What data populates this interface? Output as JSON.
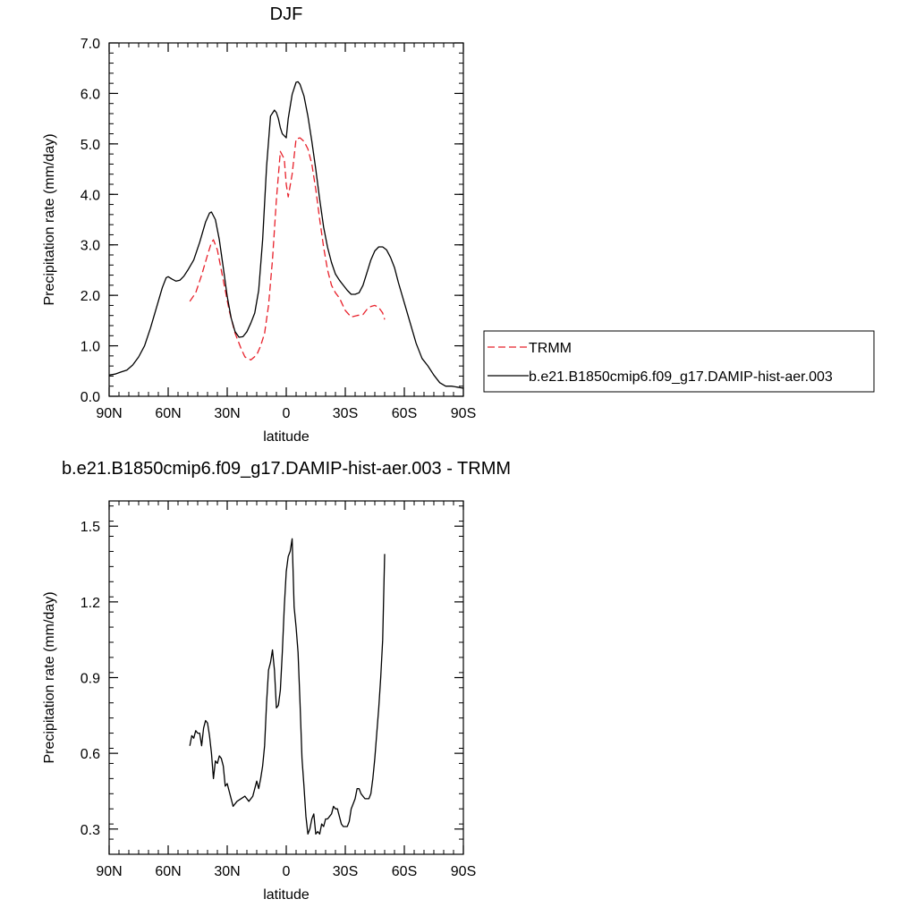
{
  "chart_data": [
    {
      "type": "line",
      "title": "DJF",
      "xlabel": "latitude",
      "ylabel": "Precipitation rate (mm/day)",
      "xlim": [
        90,
        -90
      ],
      "ylim": [
        0,
        7
      ],
      "x_ticks": [
        90,
        60,
        30,
        0,
        -30,
        -60,
        -90
      ],
      "x_tick_labels": [
        "90N",
        "60N",
        "30N",
        "0",
        "30S",
        "60S",
        "90S"
      ],
      "y_ticks": [
        0,
        1,
        2,
        3,
        4,
        5,
        6,
        7
      ],
      "y_tick_labels": [
        "0.0",
        "1.0",
        "2.0",
        "3.0",
        "4.0",
        "5.0",
        "6.0",
        "7.0"
      ],
      "legend": {
        "placement": "right",
        "entries": [
          "TRMM",
          "b.e21.B1850cmip6.f09_g17.DAMIP-hist-aer.003"
        ]
      },
      "series": [
        {
          "name": "TRMM",
          "color": "#e8202a",
          "dash": "dashed",
          "x": [
            49,
            46,
            43,
            40,
            38,
            37,
            35,
            32,
            29,
            26,
            23,
            21,
            18,
            15,
            13,
            11,
            9,
            7,
            5,
            3,
            1,
            0,
            -1,
            -3,
            -5,
            -7,
            -9,
            -11,
            -13,
            -15,
            -17,
            -19,
            -21,
            -23,
            -25,
            -27,
            -30,
            -33,
            -36,
            -39,
            -41,
            -43,
            -45,
            -47,
            -49,
            -50
          ],
          "y": [
            1.88,
            2.05,
            2.4,
            2.8,
            3.05,
            3.1,
            2.9,
            2.3,
            1.7,
            1.25,
            0.95,
            0.78,
            0.72,
            0.82,
            1.0,
            1.25,
            1.8,
            2.7,
            3.9,
            4.85,
            4.7,
            4.2,
            3.95,
            4.4,
            5.1,
            5.12,
            5.05,
            4.9,
            4.6,
            4.1,
            3.5,
            2.95,
            2.5,
            2.2,
            2.05,
            1.95,
            1.7,
            1.57,
            1.6,
            1.62,
            1.72,
            1.78,
            1.8,
            1.76,
            1.65,
            1.52
          ]
        },
        {
          "name": "b.e21.B1850cmip6.f09_g17.DAMIP-hist-aer.003",
          "color": "#000000",
          "dash": "solid",
          "x": [
            90,
            87,
            84,
            81,
            78,
            75,
            72,
            69,
            66,
            63,
            61,
            60,
            58,
            56,
            54,
            52,
            50,
            47,
            44,
            41,
            39,
            38,
            36,
            34,
            32,
            30,
            28,
            26,
            24,
            22,
            20,
            18,
            16,
            14,
            12,
            10,
            8,
            6,
            5,
            4,
            3,
            2,
            0,
            -1,
            -3,
            -5,
            -6,
            -7,
            -9,
            -11,
            -13,
            -15,
            -17,
            -19,
            -21,
            -23,
            -25,
            -27,
            -29,
            -31,
            -33,
            -35,
            -37,
            -39,
            -41,
            -43,
            -45,
            -47,
            -49,
            -51,
            -53,
            -55,
            -57,
            -60,
            -63,
            -66,
            -69,
            -72,
            -75,
            -78,
            -81,
            -84,
            -87,
            -90
          ],
          "y": [
            0.42,
            0.44,
            0.48,
            0.52,
            0.62,
            0.78,
            1.0,
            1.35,
            1.75,
            2.15,
            2.35,
            2.37,
            2.32,
            2.28,
            2.3,
            2.38,
            2.5,
            2.7,
            3.05,
            3.45,
            3.63,
            3.65,
            3.5,
            3.1,
            2.55,
            1.98,
            1.55,
            1.28,
            1.17,
            1.18,
            1.28,
            1.45,
            1.65,
            2.1,
            3.1,
            4.55,
            5.55,
            5.67,
            5.62,
            5.5,
            5.32,
            5.2,
            5.12,
            5.5,
            5.98,
            6.22,
            6.23,
            6.18,
            5.95,
            5.55,
            5.05,
            4.5,
            3.9,
            3.35,
            2.95,
            2.65,
            2.42,
            2.3,
            2.2,
            2.1,
            2.02,
            2.02,
            2.05,
            2.2,
            2.45,
            2.7,
            2.88,
            2.96,
            2.96,
            2.9,
            2.75,
            2.55,
            2.25,
            1.85,
            1.45,
            1.05,
            0.75,
            0.6,
            0.42,
            0.27,
            0.2,
            0.2,
            0.18,
            0.16
          ]
        }
      ]
    },
    {
      "type": "line",
      "title": "b.e21.B1850cmip6.f09_g17.DAMIP-hist-aer.003 - TRMM",
      "xlabel": "latitude",
      "ylabel": "Precipitation rate (mm/day)",
      "xlim": [
        90,
        -90
      ],
      "ylim": [
        0.2,
        1.6
      ],
      "x_ticks": [
        90,
        60,
        30,
        0,
        -30,
        -60,
        -90
      ],
      "x_tick_labels": [
        "90N",
        "60N",
        "30N",
        "0",
        "30S",
        "60S",
        "90S"
      ],
      "y_ticks": [
        0.3,
        0.6,
        0.9,
        1.2,
        1.5
      ],
      "y_tick_labels": [
        "0.3",
        "0.6",
        "0.9",
        "1.2",
        "1.5"
      ],
      "series": [
        {
          "color": "#000000",
          "dash": "solid",
          "x": [
            49,
            48,
            47,
            46,
            45,
            44,
            43,
            42,
            41,
            40,
            39,
            38,
            37,
            36,
            35,
            34,
            33,
            32,
            31,
            30,
            29,
            27,
            25,
            23,
            21,
            19,
            17,
            15,
            14,
            13,
            12,
            11,
            10,
            9,
            8,
            7,
            6,
            5,
            4,
            3,
            2,
            1,
            0,
            -1,
            -2,
            -3,
            -4,
            -5,
            -6,
            -7,
            -8,
            -9,
            -10,
            -11,
            -12,
            -13,
            -14,
            -15,
            -16,
            -17,
            -18,
            -19,
            -20,
            -21,
            -22,
            -23,
            -24,
            -25,
            -26,
            -27,
            -28,
            -29,
            -30,
            -31,
            -32,
            -33,
            -34,
            -35,
            -36,
            -37,
            -38,
            -39,
            -40,
            -41,
            -42,
            -43,
            -44,
            -45,
            -46,
            -47,
            -48,
            -49,
            -50
          ],
          "y": [
            0.63,
            0.67,
            0.66,
            0.69,
            0.68,
            0.68,
            0.63,
            0.7,
            0.73,
            0.72,
            0.67,
            0.6,
            0.5,
            0.57,
            0.56,
            0.59,
            0.58,
            0.55,
            0.47,
            0.48,
            0.45,
            0.39,
            0.41,
            0.42,
            0.43,
            0.41,
            0.43,
            0.49,
            0.46,
            0.5,
            0.55,
            0.63,
            0.8,
            0.93,
            0.96,
            1.01,
            0.93,
            0.78,
            0.79,
            0.85,
            1.0,
            1.18,
            1.32,
            1.38,
            1.4,
            1.45,
            1.18,
            1.1,
            1.0,
            0.8,
            0.58,
            0.47,
            0.35,
            0.28,
            0.3,
            0.34,
            0.36,
            0.28,
            0.29,
            0.28,
            0.32,
            0.31,
            0.34,
            0.34,
            0.35,
            0.36,
            0.39,
            0.38,
            0.38,
            0.35,
            0.32,
            0.31,
            0.31,
            0.31,
            0.33,
            0.38,
            0.4,
            0.42,
            0.46,
            0.46,
            0.44,
            0.43,
            0.42,
            0.42,
            0.42,
            0.44,
            0.5,
            0.58,
            0.68,
            0.78,
            0.9,
            1.05,
            1.39
          ]
        }
      ]
    }
  ]
}
